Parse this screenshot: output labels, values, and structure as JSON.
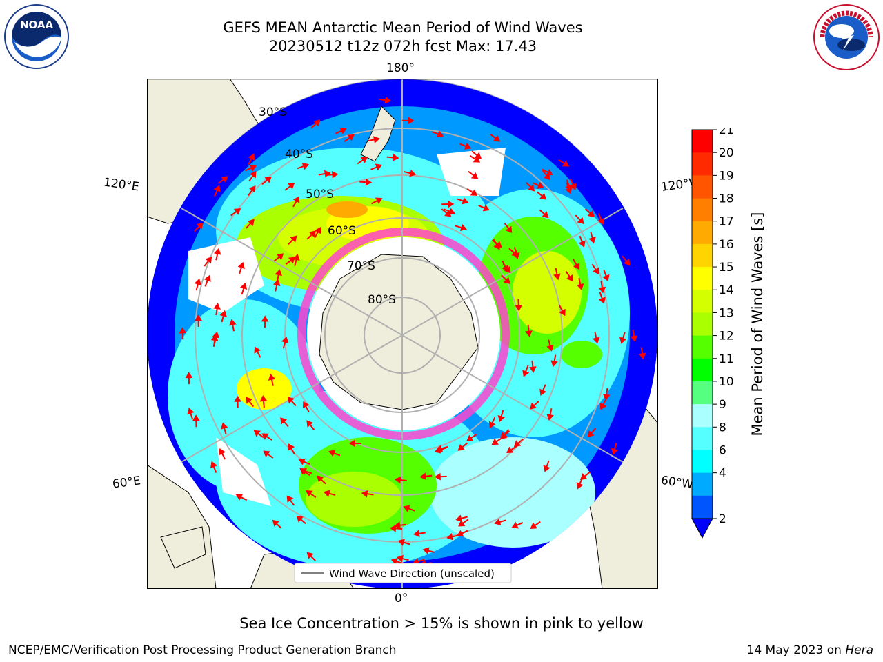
{
  "header": {
    "title_line1": "GEFS MEAN Antarctic Mean Period of Wind Waves",
    "title_line2": "20230512 t12z 072h fcst   Max: 17.43"
  },
  "logos": {
    "left": {
      "icon": "noaa-logo-icon",
      "text": "NOAA"
    },
    "right": {
      "icon": "nws-logo-icon",
      "text": "NATIONAL WEATHER SERVICE"
    }
  },
  "map": {
    "longitude_labels": {
      "top": "180°",
      "bottom": "0°",
      "left_upper": "120°E",
      "left_lower": "60°E",
      "right_upper": "120°W",
      "right_lower": "60°W"
    },
    "latitude_labels": [
      "30°S",
      "40°S",
      "50°S",
      "60°S",
      "70°S",
      "80°S"
    ],
    "legend": "Wind Wave Direction (unscaled)",
    "colors": {
      "land": "#efeddc",
      "ocean_blue": "#0000ff",
      "arrow": "#ff0000",
      "sea_ice": "#ff44cc",
      "grid": "#b0b0b0"
    }
  },
  "colorbar": {
    "label": "Mean Period of Wind Waves [s]",
    "ticks": [
      "21",
      "20",
      "19",
      "18",
      "17",
      "16",
      "15",
      "14",
      "13",
      "12",
      "11",
      "10",
      "9",
      "8",
      "6",
      "4",
      "2"
    ],
    "colors": [
      "#ff0000",
      "#ff2a00",
      "#ff5500",
      "#ff7f00",
      "#ffaa00",
      "#ffd400",
      "#ffff00",
      "#d4ff00",
      "#aaff00",
      "#55ff00",
      "#00ff00",
      "#55ff7f",
      "#aaffff",
      "#55ffff",
      "#00ffff",
      "#00aaff",
      "#0055ff"
    ],
    "extend_color": "#0000ff"
  },
  "footer": {
    "note": "Sea Ice Concentration > 15% is shown in pink to yellow",
    "left": "NCEP/EMC/Verification Post Processing Product Generation Branch",
    "right_date": "14 May 2023 on",
    "right_machine": "Hera"
  }
}
